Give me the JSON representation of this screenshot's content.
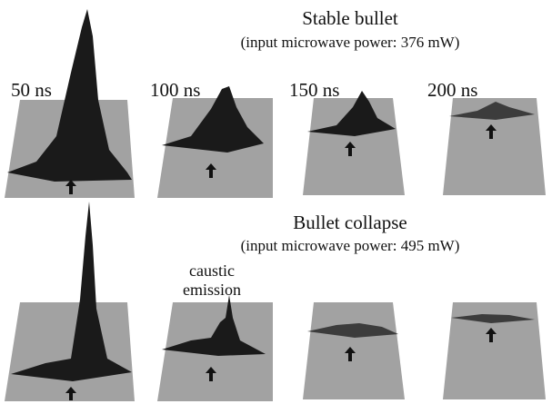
{
  "rows": [
    {
      "title": "Stable bullet",
      "subtitle": "(input microwave power: 376 mW)"
    },
    {
      "title": "Bullet collapse",
      "subtitle": "(input microwave power: 495 mW)"
    }
  ],
  "times": [
    "50 ns",
    "100 ns",
    "150 ns",
    "200 ns"
  ],
  "annotation": {
    "lines": [
      "caustic",
      "emission"
    ]
  }
}
